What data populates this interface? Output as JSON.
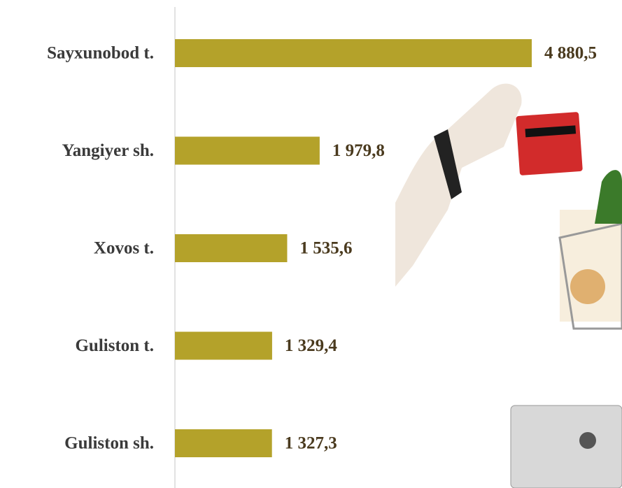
{
  "chart_data": {
    "type": "bar",
    "orientation": "horizontal",
    "categories": [
      "Sayxunobod t.",
      "Yangiyer sh.",
      "Xovos t.",
      "Guliston t.",
      "Guliston sh."
    ],
    "values": [
      4880.5,
      1979.8,
      1535.6,
      1329.4,
      1327.3
    ],
    "value_labels": [
      "4 880,5",
      "1 979,8",
      "1 535,6",
      "1 329,4",
      "1 327,3"
    ],
    "color": "#b4a22a"
  }
}
